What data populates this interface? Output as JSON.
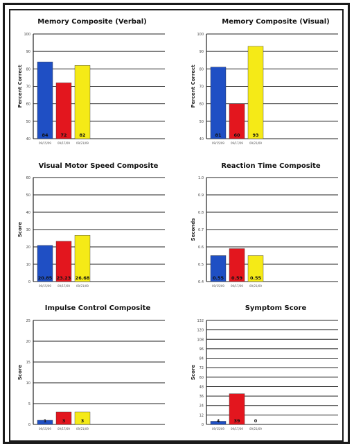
{
  "chart_data": [
    {
      "type": "bar",
      "title": "Memory Composite (Verbal)",
      "ylabel": "Percent Correct",
      "ylim": [
        40,
        100
      ],
      "yticks": [
        "40",
        "50",
        "60",
        "70",
        "80",
        "90",
        "100"
      ],
      "categories": [
        "09/15/09",
        "09/17/09",
        "09/21/09"
      ],
      "values": [
        84,
        72,
        82
      ],
      "data_labels": [
        "84",
        "72",
        "82"
      ],
      "colors": [
        "#1f4fc4",
        "#e3161e",
        "#f5ea17"
      ],
      "grid": true
    },
    {
      "type": "bar",
      "title": "Memory Composite (Visual)",
      "ylabel": "Percent Correct",
      "ylim": [
        40,
        100
      ],
      "yticks": [
        "40",
        "50",
        "60",
        "70",
        "80",
        "90",
        "100"
      ],
      "categories": [
        "09/15/09",
        "09/17/09",
        "09/21/09"
      ],
      "values": [
        81,
        60,
        93
      ],
      "data_labels": [
        "81",
        "60",
        "93"
      ],
      "colors": [
        "#1f4fc4",
        "#e3161e",
        "#f5ea17"
      ],
      "grid": true
    },
    {
      "type": "bar",
      "title": "Visual Motor Speed Composite",
      "ylabel": "Score",
      "ylim": [
        0,
        60
      ],
      "yticks": [
        "0",
        "10",
        "20",
        "30",
        "40",
        "50",
        "60"
      ],
      "categories": [
        "09/15/09",
        "09/17/09",
        "09/21/09"
      ],
      "values": [
        20.85,
        23.23,
        26.68
      ],
      "data_labels": [
        "20.85",
        "23.23",
        "26.68"
      ],
      "colors": [
        "#1f4fc4",
        "#e3161e",
        "#f5ea17"
      ],
      "grid": true
    },
    {
      "type": "bar",
      "title": "Reaction Time Composite",
      "ylabel": "Seconds",
      "ylim": [
        0.4,
        1.0
      ],
      "yticks": [
        "0.4",
        "0.5",
        "0.6",
        "0.7",
        "0.8",
        "0.9",
        "1.0"
      ],
      "categories": [
        "09/15/09",
        "09/17/09",
        "09/21/09"
      ],
      "values": [
        0.55,
        0.59,
        0.55
      ],
      "data_labels": [
        "0.55",
        "0.59",
        "0.55"
      ],
      "colors": [
        "#1f4fc4",
        "#e3161e",
        "#f5ea17"
      ],
      "grid": true
    },
    {
      "type": "bar",
      "title": "Impulse Control Composite",
      "ylabel": "Score",
      "ylim": [
        0,
        25
      ],
      "yticks": [
        "0",
        "5",
        "10",
        "15",
        "20",
        "25"
      ],
      "categories": [
        "09/15/09",
        "09/17/09",
        "09/21/09"
      ],
      "values": [
        1,
        3,
        3
      ],
      "data_labels": [
        "1",
        "3",
        "3"
      ],
      "colors": [
        "#1f4fc4",
        "#e3161e",
        "#f5ea17"
      ],
      "grid": true
    },
    {
      "type": "bar",
      "title": "Symptom Score",
      "ylabel": "Score",
      "ylim": [
        0,
        132
      ],
      "yticks": [
        "0",
        "12",
        "24",
        "36",
        "48",
        "60",
        "72",
        "84",
        "96",
        "108",
        "120",
        "132"
      ],
      "categories": [
        "09/15/09",
        "09/17/09",
        "09/21/09"
      ],
      "values": [
        4,
        39,
        0
      ],
      "data_labels": [
        "4",
        "39",
        "0"
      ],
      "colors": [
        "#1f4fc4",
        "#e3161e",
        "#f5ea17"
      ],
      "grid": true
    }
  ]
}
